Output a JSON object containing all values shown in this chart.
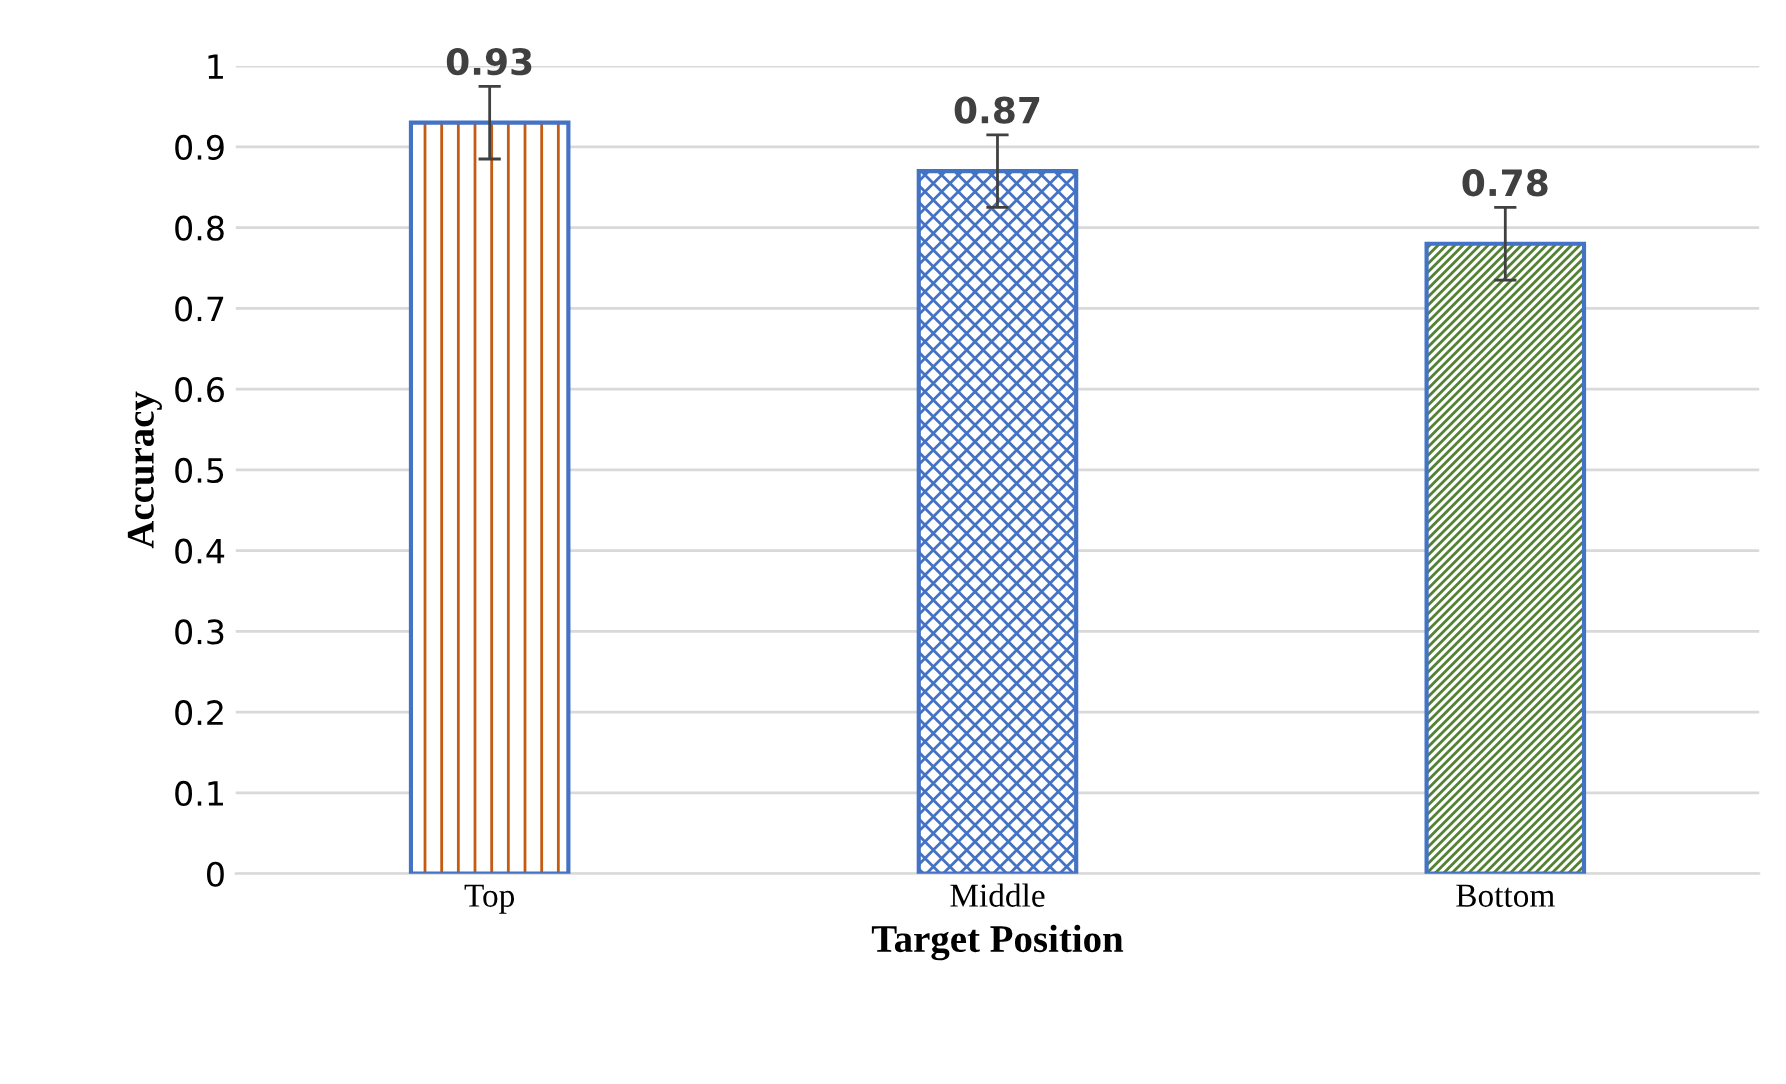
{
  "chart_data": {
    "type": "bar",
    "xlabel": "Target Position",
    "ylabel": "Accuracy",
    "categories": [
      "Top",
      "Middle",
      "Bottom"
    ],
    "values": [
      0.93,
      0.87,
      0.78
    ],
    "errors": [
      0.045,
      0.045,
      0.045
    ],
    "colors": [
      "#c55a11",
      "#4472c4",
      "#548235"
    ],
    "ylim": [
      0,
      1
    ],
    "yticks": [
      0,
      0.1,
      0.2,
      0.3,
      0.4,
      0.5,
      0.6,
      0.7,
      0.8,
      0.9,
      1
    ],
    "grid": "y",
    "data_labels": true
  }
}
